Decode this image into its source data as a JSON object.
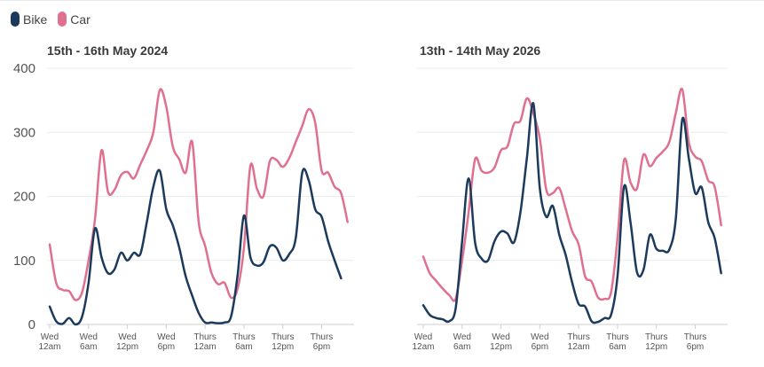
{
  "legend": [
    {
      "name": "Bike",
      "color": "#1b3a5c"
    },
    {
      "name": "Car",
      "color": "#e0708f"
    }
  ],
  "chart_data": [
    {
      "type": "line",
      "title": "15th - 16th May 2024",
      "ylim": [
        0,
        400
      ],
      "yticks": [
        0,
        100,
        200,
        300,
        400
      ],
      "grid": true,
      "xlim": [
        0,
        47
      ],
      "x_ticks": [
        {
          "x": 0,
          "l1": "Wed",
          "l2": "12am"
        },
        {
          "x": 6,
          "l1": "Wed",
          "l2": "6am"
        },
        {
          "x": 12,
          "l1": "Wed",
          "l2": "12pm"
        },
        {
          "x": 18,
          "l1": "Wed",
          "l2": "6pm"
        },
        {
          "x": 24,
          "l1": "Thurs",
          "l2": "12am"
        },
        {
          "x": 30,
          "l1": "Thurs",
          "l2": "6am"
        },
        {
          "x": 36,
          "l1": "Thurs",
          "l2": "12pm"
        },
        {
          "x": 42,
          "l1": "Thurs",
          "l2": "6pm"
        }
      ],
      "series": [
        {
          "name": "Bike",
          "color": "#1b3a5c",
          "values": [
            [
              0,
              28
            ],
            [
              1,
              5
            ],
            [
              2,
              1
            ],
            [
              3,
              10
            ],
            [
              4,
              0
            ],
            [
              5,
              12
            ],
            [
              6,
              65
            ],
            [
              7,
              150
            ],
            [
              8,
              105
            ],
            [
              9,
              80
            ],
            [
              10,
              86
            ],
            [
              11,
              112
            ],
            [
              12,
              100
            ],
            [
              13,
              112
            ],
            [
              14,
              110
            ],
            [
              15,
              160
            ],
            [
              16,
              215
            ],
            [
              17,
              240
            ],
            [
              18,
              180
            ],
            [
              19,
              155
            ],
            [
              20,
              120
            ],
            [
              21,
              75
            ],
            [
              22,
              45
            ],
            [
              23,
              18
            ],
            [
              24,
              3
            ],
            [
              25,
              3
            ],
            [
              26,
              2
            ],
            [
              27,
              3
            ],
            [
              28,
              12
            ],
            [
              29,
              75
            ],
            [
              30,
              170
            ],
            [
              31,
              105
            ],
            [
              32,
              92
            ],
            [
              33,
              97
            ],
            [
              34,
              122
            ],
            [
              35,
              120
            ],
            [
              36,
              100
            ],
            [
              37,
              110
            ],
            [
              38,
              135
            ],
            [
              39,
              237
            ],
            [
              40,
              225
            ],
            [
              41,
              180
            ],
            [
              42,
              168
            ],
            [
              43,
              130
            ],
            [
              44,
              100
            ],
            [
              45,
              72
            ]
          ]
        },
        {
          "name": "Car",
          "color": "#e0708f",
          "values": [
            [
              0,
              125
            ],
            [
              1,
              65
            ],
            [
              2,
              54
            ],
            [
              3,
              52
            ],
            [
              4,
              38
            ],
            [
              5,
              50
            ],
            [
              6,
              100
            ],
            [
              7,
              165
            ],
            [
              8,
              272
            ],
            [
              9,
              207
            ],
            [
              10,
              210
            ],
            [
              11,
              233
            ],
            [
              12,
              238
            ],
            [
              13,
              228
            ],
            [
              14,
              250
            ],
            [
              15,
              272
            ],
            [
              16,
              300
            ],
            [
              17,
              366
            ],
            [
              18,
              340
            ],
            [
              19,
              278
            ],
            [
              20,
              258
            ],
            [
              21,
              237
            ],
            [
              22,
              285
            ],
            [
              23,
              160
            ],
            [
              24,
              123
            ],
            [
              25,
              80
            ],
            [
              26,
              63
            ],
            [
              27,
              65
            ],
            [
              28,
              42
            ],
            [
              29,
              55
            ],
            [
              30,
              120
            ],
            [
              31,
              248
            ],
            [
              32,
              212
            ],
            [
              33,
              200
            ],
            [
              34,
              255
            ],
            [
              35,
              257
            ],
            [
              36,
              246
            ],
            [
              37,
              260
            ],
            [
              38,
              285
            ],
            [
              39,
              310
            ],
            [
              40,
              336
            ],
            [
              41,
              315
            ],
            [
              42,
              240
            ],
            [
              43,
              237
            ],
            [
              44,
              215
            ],
            [
              45,
              205
            ],
            [
              46,
              160
            ]
          ]
        }
      ]
    },
    {
      "type": "line",
      "title": "13th - 14th May 2026",
      "ylim": [
        0,
        400
      ],
      "yticks": [
        0,
        100,
        200,
        300,
        400
      ],
      "grid": true,
      "xlim": [
        0,
        47
      ],
      "x_ticks": [
        {
          "x": 0,
          "l1": "Wed",
          "l2": "12am"
        },
        {
          "x": 6,
          "l1": "Wed",
          "l2": "6am"
        },
        {
          "x": 12,
          "l1": "Wed",
          "l2": "12pm"
        },
        {
          "x": 18,
          "l1": "Wed",
          "l2": "6pm"
        },
        {
          "x": 24,
          "l1": "Thurs",
          "l2": "12am"
        },
        {
          "x": 30,
          "l1": "Thurs",
          "l2": "6am"
        },
        {
          "x": 36,
          "l1": "Thurs",
          "l2": "12pm"
        },
        {
          "x": 42,
          "l1": "Thurs",
          "l2": "6pm"
        }
      ],
      "series": [
        {
          "name": "Bike",
          "color": "#1b3a5c",
          "values": [
            [
              0,
              30
            ],
            [
              1,
              15
            ],
            [
              2,
              10
            ],
            [
              3,
              8
            ],
            [
              4,
              5
            ],
            [
              5,
              25
            ],
            [
              6,
              130
            ],
            [
              7,
              228
            ],
            [
              8,
              128
            ],
            [
              9,
              103
            ],
            [
              10,
              100
            ],
            [
              11,
              130
            ],
            [
              12,
              145
            ],
            [
              13,
              142
            ],
            [
              14,
              128
            ],
            [
              15,
              175
            ],
            [
              16,
              260
            ],
            [
              17,
              345
            ],
            [
              18,
              212
            ],
            [
              19,
              168
            ],
            [
              20,
              185
            ],
            [
              21,
              140
            ],
            [
              22,
              108
            ],
            [
              23,
              65
            ],
            [
              24,
              32
            ],
            [
              25,
              28
            ],
            [
              26,
              5
            ],
            [
              27,
              4
            ],
            [
              28,
              10
            ],
            [
              29,
              15
            ],
            [
              30,
              75
            ],
            [
              31,
              215
            ],
            [
              32,
              160
            ],
            [
              33,
              82
            ],
            [
              34,
              85
            ],
            [
              35,
              140
            ],
            [
              36,
              118
            ],
            [
              37,
              115
            ],
            [
              38,
              117
            ],
            [
              39,
              165
            ],
            [
              40,
              320
            ],
            [
              41,
              260
            ],
            [
              42,
              205
            ],
            [
              43,
              214
            ],
            [
              44,
              160
            ],
            [
              45,
              135
            ],
            [
              46,
              80
            ]
          ]
        },
        {
          "name": "Car",
          "color": "#e0708f",
          "values": [
            [
              0,
              106
            ],
            [
              1,
              80
            ],
            [
              2,
              68
            ],
            [
              3,
              56
            ],
            [
              4,
              46
            ],
            [
              5,
              40
            ],
            [
              6,
              100
            ],
            [
              7,
              175
            ],
            [
              8,
              258
            ],
            [
              9,
              240
            ],
            [
              10,
              237
            ],
            [
              11,
              245
            ],
            [
              12,
              272
            ],
            [
              13,
              278
            ],
            [
              14,
              313
            ],
            [
              15,
              318
            ],
            [
              16,
              353
            ],
            [
              17,
              330
            ],
            [
              18,
              290
            ],
            [
              19,
              210
            ],
            [
              20,
              205
            ],
            [
              21,
              213
            ],
            [
              22,
              180
            ],
            [
              23,
              145
            ],
            [
              24,
              125
            ],
            [
              25,
              75
            ],
            [
              26,
              67
            ],
            [
              27,
              42
            ],
            [
              28,
              40
            ],
            [
              29,
              50
            ],
            [
              30,
              135
            ],
            [
              31,
              256
            ],
            [
              32,
              222
            ],
            [
              33,
              212
            ],
            [
              34,
              265
            ],
            [
              35,
              247
            ],
            [
              36,
              260
            ],
            [
              37,
              270
            ],
            [
              38,
              285
            ],
            [
              39,
              330
            ],
            [
              40,
              367
            ],
            [
              41,
              285
            ],
            [
              42,
              262
            ],
            [
              43,
              255
            ],
            [
              44,
              225
            ],
            [
              45,
              215
            ],
            [
              46,
              155
            ]
          ]
        }
      ]
    }
  ]
}
